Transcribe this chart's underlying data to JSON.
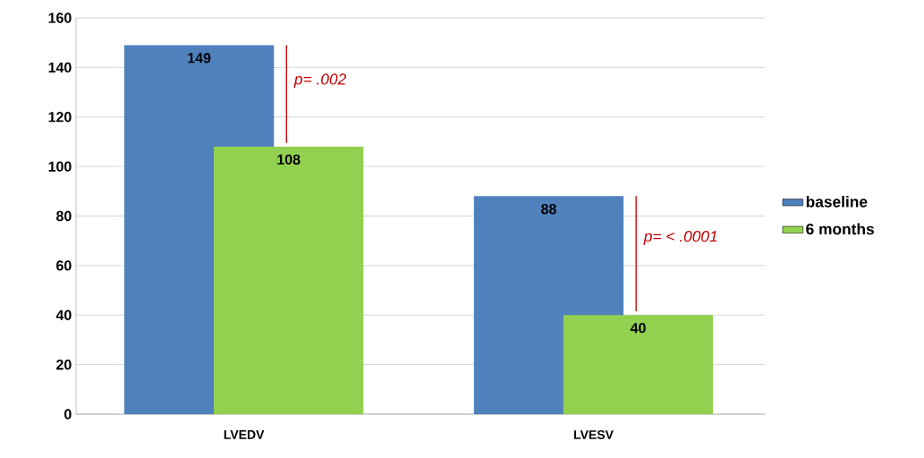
{
  "chart_data": {
    "type": "bar",
    "categories": [
      "LVEDV",
      "LVESV"
    ],
    "series": [
      {
        "name": "baseline",
        "color": "#4f81bd",
        "values": [
          149,
          88
        ]
      },
      {
        "name": "6 months",
        "color": "#92d050",
        "values": [
          108,
          40
        ]
      }
    ],
    "ylim": [
      0,
      160
    ],
    "yticks": [
      0,
      20,
      40,
      60,
      80,
      100,
      120,
      140,
      160
    ],
    "grid": "y",
    "legend": "right",
    "data_labels": true,
    "annotations": [
      "p= .002",
      "p= < .0001"
    ]
  }
}
